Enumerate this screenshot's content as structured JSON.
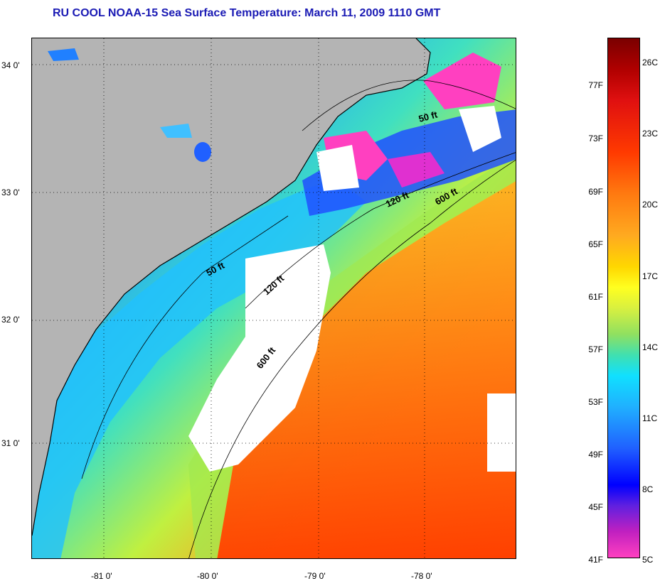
{
  "title": "RU COOL  NOAA-15  Sea Surface Temperature:  March 11, 2009 1110 GMT",
  "map": {
    "lat_labels": [
      "34 0'",
      "33 0'",
      "32 0'",
      "31 0'"
    ],
    "lon_labels": [
      "-81 0'",
      "-80 0'",
      "-79 0'",
      "-78 0'"
    ],
    "depth_contours": [
      "50 ft",
      "120 ft",
      "600 ft",
      "50 ft",
      "120 ft",
      "600 ft"
    ],
    "land_color": "#b4b4b4",
    "cloud_color": "#ffffff"
  },
  "colorbar": {
    "fahrenheit": [
      "77F",
      "73F",
      "69F",
      "65F",
      "61F",
      "57F",
      "53F",
      "49F",
      "45F",
      "41F"
    ],
    "celsius": [
      "26C",
      "23C",
      "20C",
      "17C",
      "14C",
      "11C",
      "8C",
      "5C"
    ]
  }
}
